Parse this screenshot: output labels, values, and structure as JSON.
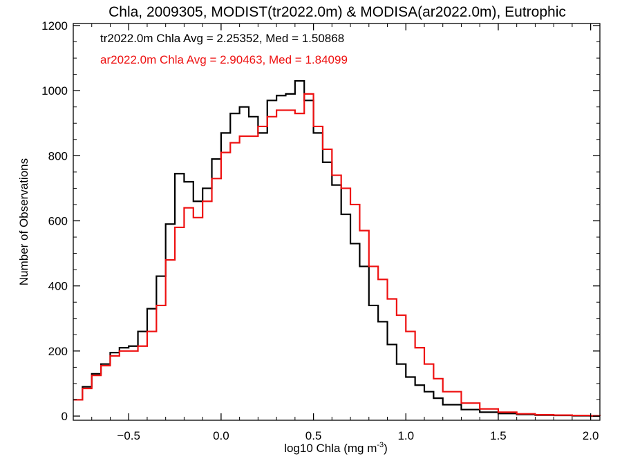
{
  "chart_data": {
    "type": "line",
    "step": true,
    "title": "Chla, 2009305, MODIST(tr2022.0m) & MODISA(ar2022.0m), Eutrophic",
    "xlabel": "log10 Chla (mg m",
    "xlabel_sup": "-3",
    "xlabel_close": ")",
    "ylabel": "Number of Observations",
    "xlim": [
      -0.8,
      2.05
    ],
    "ylim": [
      0,
      1200
    ],
    "x_ticks": [
      -0.5,
      0.0,
      0.5,
      1.0,
      1.5,
      2.0
    ],
    "x_tick_labels": [
      "−0.5",
      "0.0",
      "0.5",
      "1.0",
      "1.5",
      "2.0"
    ],
    "y_ticks": [
      0,
      200,
      400,
      600,
      800,
      1000,
      1200
    ],
    "y_tick_labels": [
      "0",
      "200",
      "400",
      "600",
      "800",
      "1000",
      "1200"
    ],
    "grid": false,
    "legend_position": "top-left",
    "legend": [
      {
        "text": "tr2022.0m Chla Avg = 2.25352, Med = 1.50868",
        "color": "#000000"
      },
      {
        "text": "ar2022.0m Chla Avg = 2.90463, Med = 1.84099",
        "color": "#ee1111"
      }
    ],
    "series": [
      {
        "color": "#000000",
        "x": [
          -0.8,
          -0.75,
          -0.7,
          -0.65,
          -0.6,
          -0.55,
          -0.5,
          -0.45,
          -0.4,
          -0.35,
          -0.3,
          -0.25,
          -0.2,
          -0.15,
          -0.1,
          -0.05,
          0.0,
          0.05,
          0.1,
          0.15,
          0.2,
          0.25,
          0.3,
          0.35,
          0.4,
          0.45,
          0.5,
          0.55,
          0.6,
          0.65,
          0.7,
          0.75,
          0.8,
          0.85,
          0.9,
          0.95,
          1.0,
          1.05,
          1.1,
          1.15,
          1.2,
          1.3,
          1.4,
          1.5,
          1.6,
          1.7,
          1.8,
          1.9,
          2.0,
          2.05
        ],
        "values": [
          50,
          90,
          130,
          160,
          195,
          210,
          215,
          260,
          330,
          430,
          590,
          745,
          720,
          660,
          700,
          790,
          870,
          930,
          950,
          920,
          870,
          970,
          985,
          990,
          1030,
          970,
          870,
          780,
          710,
          620,
          530,
          460,
          340,
          290,
          220,
          160,
          120,
          95,
          75,
          55,
          35,
          20,
          12,
          8,
          5,
          3,
          2,
          1,
          0,
          0
        ]
      },
      {
        "color": "#ee1111",
        "x": [
          -0.8,
          -0.75,
          -0.7,
          -0.65,
          -0.6,
          -0.55,
          -0.5,
          -0.45,
          -0.4,
          -0.35,
          -0.3,
          -0.25,
          -0.2,
          -0.15,
          -0.1,
          -0.05,
          0.0,
          0.05,
          0.1,
          0.15,
          0.2,
          0.25,
          0.3,
          0.35,
          0.4,
          0.45,
          0.5,
          0.55,
          0.6,
          0.65,
          0.7,
          0.75,
          0.8,
          0.85,
          0.9,
          0.95,
          1.0,
          1.05,
          1.1,
          1.15,
          1.2,
          1.3,
          1.4,
          1.5,
          1.6,
          1.7,
          1.8,
          1.9,
          2.0,
          2.05
        ],
        "values": [
          50,
          85,
          125,
          155,
          185,
          200,
          200,
          215,
          260,
          340,
          480,
          580,
          640,
          610,
          660,
          730,
          810,
          840,
          860,
          860,
          890,
          920,
          940,
          940,
          930,
          990,
          890,
          820,
          740,
          700,
          650,
          570,
          460,
          420,
          360,
          310,
          260,
          210,
          160,
          115,
          75,
          40,
          22,
          12,
          7,
          4,
          3,
          2,
          1,
          0
        ]
      }
    ]
  }
}
